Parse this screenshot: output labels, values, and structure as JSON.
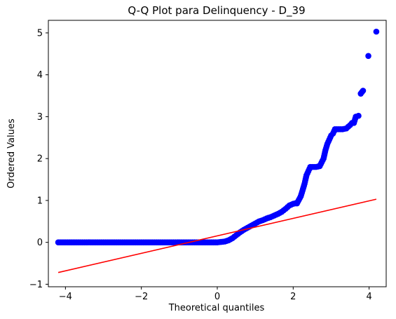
{
  "chart_data": {
    "type": "scatter",
    "title": "Q-Q Plot para Delinquency - D_39",
    "xlabel": "Theoretical quantiles",
    "ylabel": "Ordered Values",
    "xlim": [
      -4.45,
      4.45
    ],
    "ylim": [
      -1.06,
      5.3
    ],
    "xticks": [
      -4,
      -2,
      0,
      2,
      4
    ],
    "xtick_labels": [
      "−4",
      "−2",
      "0",
      "2",
      "4"
    ],
    "yticks": [
      -1,
      0,
      1,
      2,
      3,
      4,
      5
    ],
    "ytick_labels": [
      "−1",
      "0",
      "1",
      "2",
      "3",
      "4",
      "5"
    ],
    "grid": false,
    "colors": {
      "points": "#0000ff",
      "line": "#ff0000",
      "axes": "#000000"
    },
    "series": [
      {
        "type": "scatter",
        "x": [
          -4.19,
          -3.94,
          -3.75,
          -3.6,
          -3.45,
          -3.3,
          -3.15,
          -3.0,
          -2.85,
          -2.7,
          -2.55,
          -2.4,
          -2.25,
          -2.1,
          -1.95,
          -1.8,
          -1.65,
          -1.5,
          -1.35,
          -1.2,
          -1.05,
          -0.9,
          -0.75,
          -0.6,
          -0.45,
          -0.3,
          -0.15,
          0.0,
          0.1,
          0.2,
          0.3,
          0.4,
          0.5,
          0.6,
          0.7,
          0.8,
          0.9,
          1.0,
          1.1,
          1.2,
          1.3,
          1.4,
          1.5,
          1.6,
          1.7,
          1.8,
          1.9,
          2.0,
          2.05,
          2.1,
          2.2,
          2.3,
          2.35,
          2.4,
          2.45,
          2.5,
          2.55,
          2.6,
          2.7,
          2.8,
          2.85,
          2.9,
          2.95,
          3.0,
          3.05,
          3.1,
          3.15,
          3.2,
          3.3,
          3.4,
          3.5,
          3.55,
          3.6,
          3.65,
          3.72,
          3.78,
          3.84,
          3.98,
          4.19
        ],
        "y": [
          0.0,
          0.0,
          0.0,
          0.0,
          0.0,
          0.0,
          0.0,
          0.0,
          0.0,
          0.0,
          0.0,
          0.0,
          0.0,
          0.0,
          0.0,
          0.0,
          0.0,
          0.0,
          0.0,
          0.0,
          0.0,
          0.0,
          0.0,
          0.0,
          0.0,
          0.0,
          0.0,
          0.0,
          0.01,
          0.02,
          0.05,
          0.1,
          0.17,
          0.24,
          0.3,
          0.35,
          0.4,
          0.45,
          0.5,
          0.53,
          0.57,
          0.6,
          0.64,
          0.68,
          0.73,
          0.8,
          0.88,
          0.92,
          0.93,
          0.93,
          1.1,
          1.4,
          1.6,
          1.7,
          1.8,
          1.8,
          1.8,
          1.8,
          1.82,
          2.0,
          2.2,
          2.35,
          2.45,
          2.55,
          2.6,
          2.7,
          2.7,
          2.7,
          2.7,
          2.72,
          2.8,
          2.85,
          2.85,
          3.0,
          3.02,
          3.55,
          3.62,
          4.45,
          5.03
        ]
      },
      {
        "type": "line",
        "x": [
          -4.19,
          4.19
        ],
        "y": [
          -0.72,
          1.03
        ]
      }
    ]
  }
}
